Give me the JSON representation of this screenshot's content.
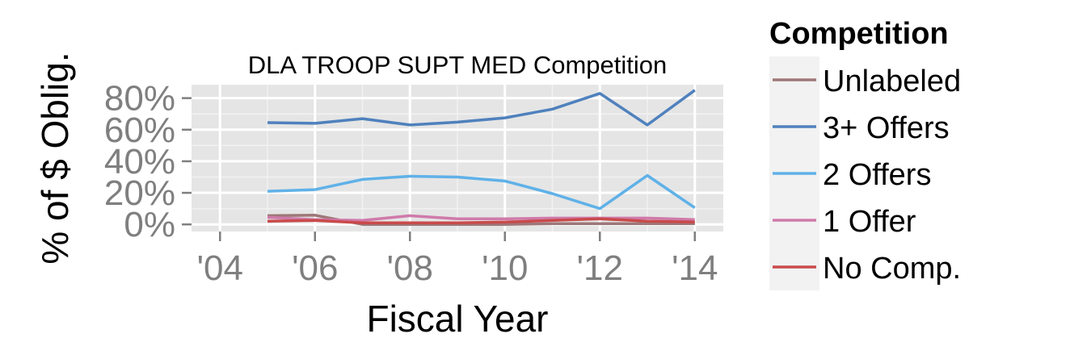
{
  "chart_data": {
    "type": "line",
    "title": "DLA TROOP SUPT MED Competition",
    "xlabel": "Fiscal Year",
    "ylabel": "% of $ Oblig.",
    "xlim": [
      2003.4,
      2014.6
    ],
    "ylim": [
      -0.045,
      0.885
    ],
    "x_ticks": [
      2004,
      2006,
      2008,
      2010,
      2012,
      2014
    ],
    "x_tick_labels": [
      "'04",
      "'06",
      "'08",
      "'10",
      "'12",
      "'14"
    ],
    "y_ticks": [
      0,
      0.2,
      0.4,
      0.6,
      0.8
    ],
    "y_tick_labels": [
      "0%",
      "20%",
      "40%",
      "60%",
      "80%"
    ],
    "grid": true,
    "legend": {
      "title": "Competition",
      "position": "right"
    },
    "series": [
      {
        "name": "Unlabeled",
        "color": "#9e7778",
        "x": [
          2005,
          2006,
          2007,
          2008,
          2009,
          2010,
          2011,
          2012,
          2013,
          2014
        ],
        "values": [
          0.055,
          0.058,
          0.0,
          0.0,
          0.0,
          0.0,
          0.005,
          0.005,
          0.005,
          0.005
        ]
      },
      {
        "name": "3+ Offers",
        "color": "#4f81bd",
        "x": [
          2005,
          2006,
          2007,
          2008,
          2009,
          2010,
          2011,
          2012,
          2013,
          2014
        ],
        "values": [
          0.645,
          0.64,
          0.67,
          0.63,
          0.648,
          0.675,
          0.73,
          0.83,
          0.63,
          0.85
        ]
      },
      {
        "name": "2 Offers",
        "color": "#5fb1e8",
        "x": [
          2005,
          2006,
          2007,
          2008,
          2009,
          2010,
          2011,
          2012,
          2013,
          2014
        ],
        "values": [
          0.21,
          0.22,
          0.285,
          0.305,
          0.3,
          0.275,
          0.195,
          0.1,
          0.31,
          0.105
        ]
      },
      {
        "name": "1 Offer",
        "color": "#d07aaa",
        "x": [
          2005,
          2006,
          2007,
          2008,
          2009,
          2010,
          2011,
          2012,
          2013,
          2014
        ],
        "values": [
          0.045,
          0.03,
          0.025,
          0.055,
          0.035,
          0.035,
          0.04,
          0.04,
          0.04,
          0.03
        ]
      },
      {
        "name": "No Comp.",
        "color": "#c94a4a",
        "x": [
          2005,
          2006,
          2007,
          2008,
          2009,
          2010,
          2011,
          2012,
          2013,
          2014
        ],
        "values": [
          0.02,
          0.025,
          0.01,
          0.01,
          0.01,
          0.015,
          0.025,
          0.035,
          0.02,
          0.015
        ]
      }
    ]
  }
}
